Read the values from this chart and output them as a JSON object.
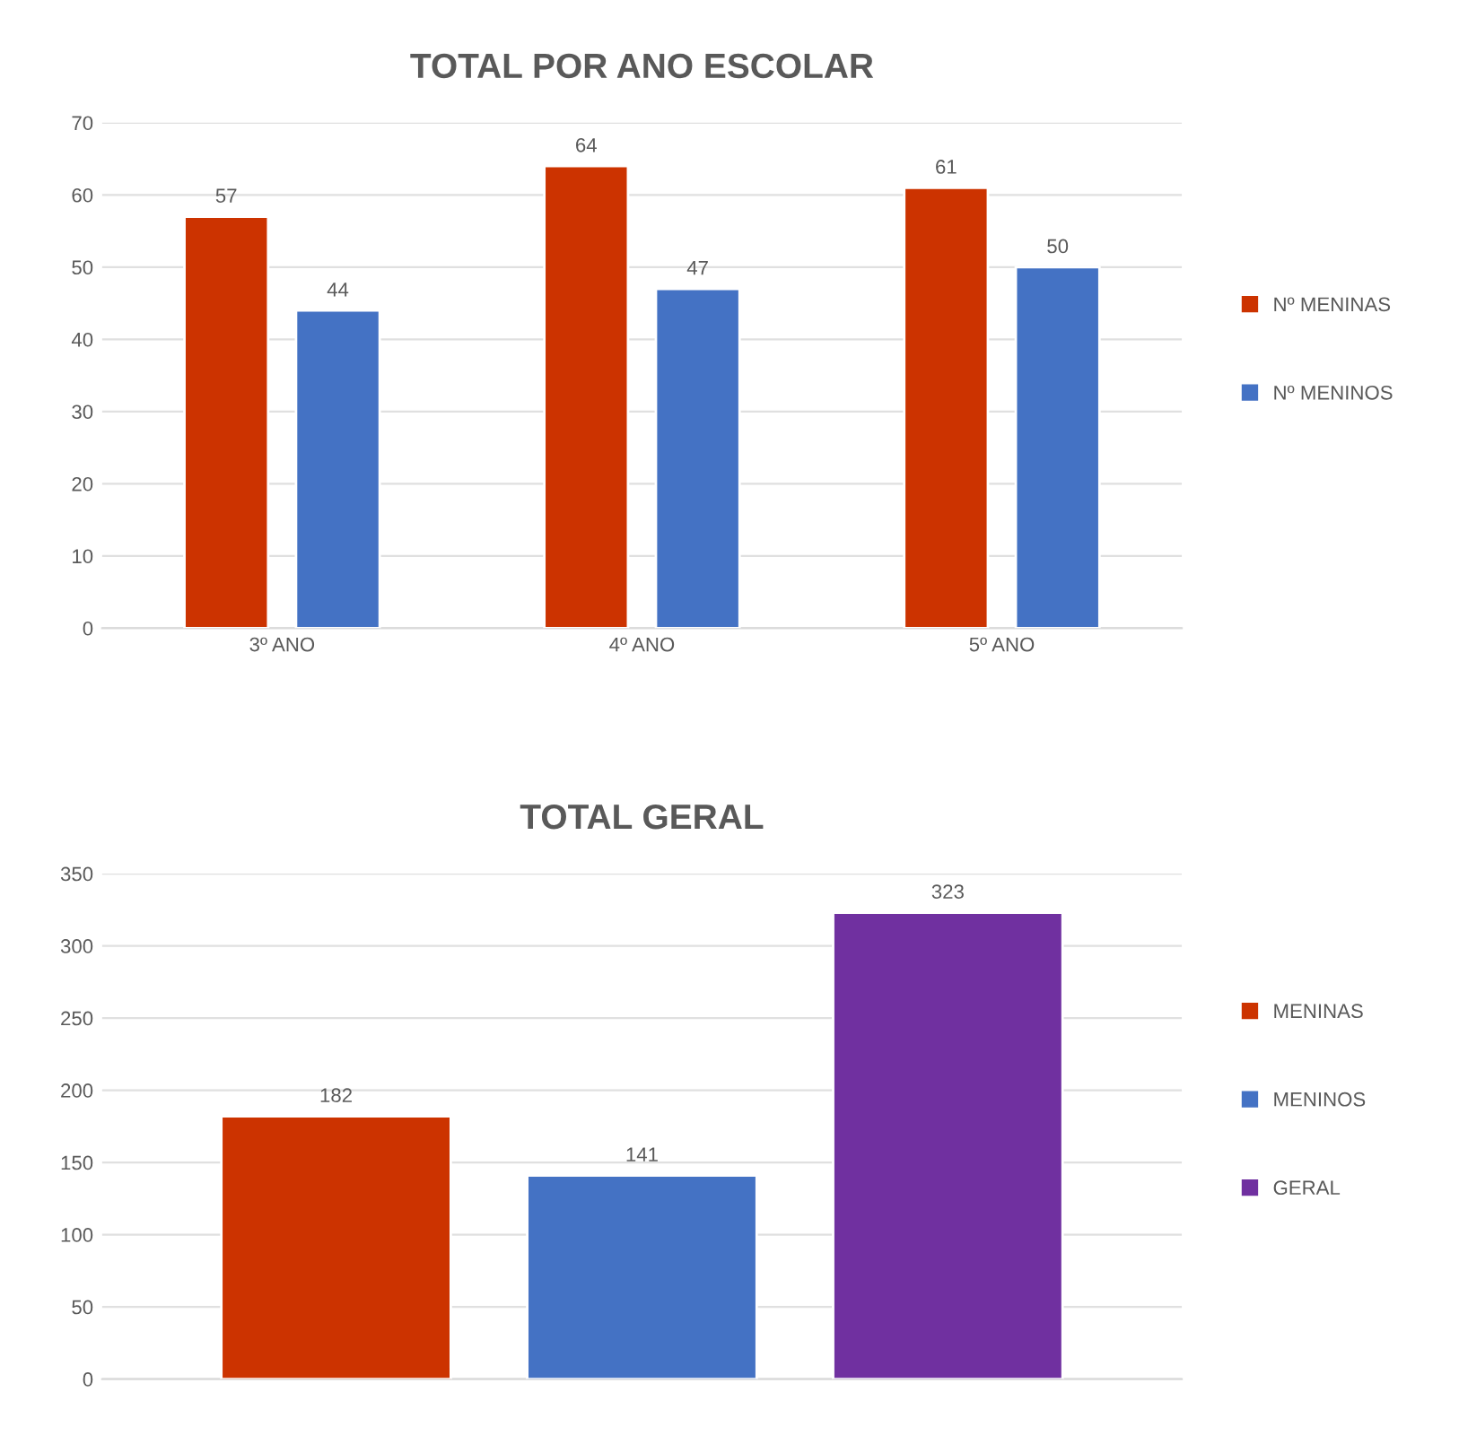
{
  "chart_data": [
    {
      "type": "bar",
      "title": "TOTAL POR ANO ESCOLAR",
      "categories": [
        "3º ANO",
        "4º ANO",
        "5º ANO"
      ],
      "series": [
        {
          "name": "Nº MENINAS",
          "color": "#cc3300",
          "values": [
            57,
            64,
            61
          ]
        },
        {
          "name": "Nº MENINOS",
          "color": "#4472c4",
          "values": [
            44,
            47,
            50
          ]
        }
      ],
      "ylim": [
        0,
        70
      ],
      "yticks": [
        0,
        10,
        20,
        30,
        40,
        50,
        60,
        70
      ],
      "grid": "y",
      "legend": "right",
      "data_labels": true
    },
    {
      "type": "bar",
      "title": "TOTAL GERAL",
      "categories": [
        null
      ],
      "series": [
        {
          "name": "MENINAS",
          "color": "#cc3300",
          "values": [
            182
          ]
        },
        {
          "name": "MENINOS",
          "color": "#4472c4",
          "values": [
            141
          ]
        },
        {
          "name": "GERAL",
          "color": "#7030a0",
          "values": [
            323
          ]
        }
      ],
      "ylim": [
        0,
        350
      ],
      "yticks": [
        0,
        50,
        100,
        150,
        200,
        250,
        300,
        350
      ],
      "grid": "y",
      "legend": "right",
      "data_labels": true
    }
  ]
}
